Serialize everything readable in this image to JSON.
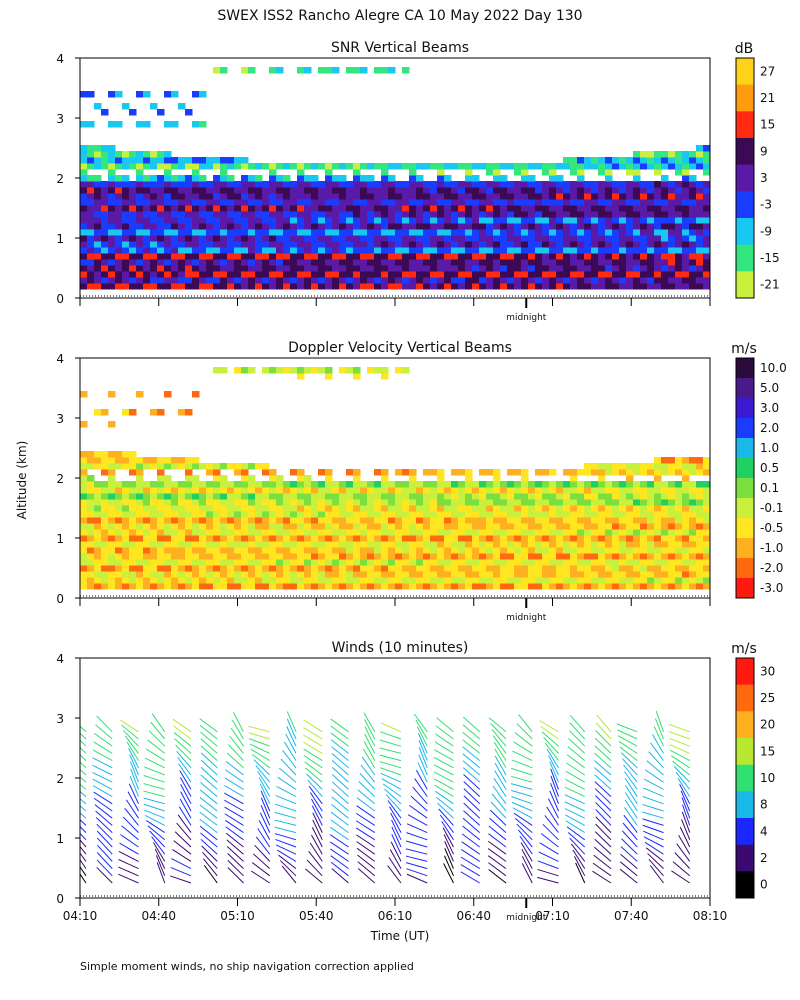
{
  "page_title": "SWEX ISS2 Rancho Alegre CA  10 May 2022 Day 130",
  "footnote": "Simple moment winds, no ship navigation correction applied",
  "midnight_label": "midnight",
  "x_axis": {
    "label": "Time (UT)",
    "range": [
      0,
      240
    ],
    "tick_labels": [
      "04:10",
      "04:40",
      "05:10",
      "05:40",
      "06:10",
      "06:40",
      "07:10",
      "07:40",
      "08:10"
    ],
    "tick_minutes": [
      0,
      30,
      60,
      90,
      120,
      150,
      180,
      210,
      240
    ],
    "midnight_minute": 170
  },
  "y_axis": {
    "label": "Altitude (km)",
    "range": [
      0,
      4
    ],
    "ticks": [
      "0",
      "1",
      "2",
      "3",
      "4"
    ]
  },
  "chart_data": [
    {
      "type": "heatmap",
      "title": "SNR Vertical Beams",
      "unit": "dB",
      "colorbar_ticks": [
        "27",
        "21",
        "15",
        "9",
        "3",
        "-3",
        "-9",
        "-15",
        "-21"
      ],
      "colorbar_colors": [
        "#ffd21a",
        "#ff9b0f",
        "#ff2a10",
        "#3c0a55",
        "#5a1aa8",
        "#1a3cff",
        "#19c8f0",
        "#33e680",
        "#c8f03c"
      ],
      "ylim": [
        0,
        4
      ]
    },
    {
      "type": "heatmap",
      "title": "Doppler Velocity Vertical Beams",
      "unit": "m/s",
      "colorbar_ticks": [
        "10.0",
        "5.0",
        "3.0",
        "2.0",
        "1.0",
        "0.5",
        "0.1",
        "-0.1",
        "-0.5",
        "-1.0",
        "-2.0",
        "-3.0"
      ],
      "colorbar_colors": [
        "#2a0a3a",
        "#4a1a8a",
        "#3a1ad0",
        "#1a3cff",
        "#19b8e8",
        "#20d060",
        "#7ae040",
        "#c8f03c",
        "#ffe620",
        "#ffb020",
        "#ff6a10",
        "#ff1a10"
      ],
      "ylim": [
        0,
        4
      ]
    },
    {
      "type": "scatter",
      "title": "Winds (10 minutes)",
      "unit": "m/s",
      "colorbar_ticks": [
        "30",
        "25",
        "20",
        "15",
        "10",
        "8",
        "4",
        "2",
        "0"
      ],
      "colorbar_colors": [
        "#ff1a10",
        "#ff6a10",
        "#ffb020",
        "#b8e830",
        "#30e070",
        "#19b8e8",
        "#1a28ff",
        "#3a0a70",
        "#000000"
      ],
      "ylim": [
        0,
        4
      ]
    }
  ]
}
